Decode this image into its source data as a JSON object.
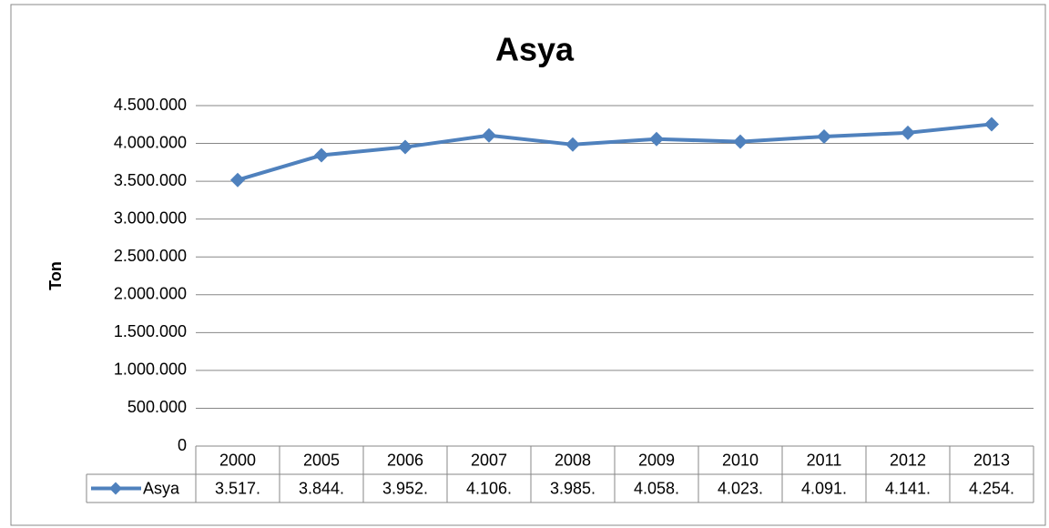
{
  "chart_data": {
    "type": "line",
    "title": "Asya",
    "y_label": "Ton",
    "categories": [
      "2000",
      "2005",
      "2006",
      "2007",
      "2008",
      "2009",
      "2010",
      "2011",
      "2012",
      "2013"
    ],
    "series": [
      {
        "name": "Asya",
        "color": "#4f81bd",
        "values": [
          3517000,
          3844000,
          3952000,
          4106000,
          3985000,
          4058000,
          4023000,
          4091000,
          4141000,
          4254000
        ],
        "value_labels": [
          "3.517.",
          "3.844.",
          "3.952.",
          "4.106.",
          "3.985.",
          "4.058.",
          "4.023.",
          "4.091.",
          "4.141.",
          "4.254."
        ]
      }
    ],
    "ylim": [
      0,
      4500000
    ],
    "yticks": [
      0,
      {
        "value": 500000,
        "label": "500.000"
      },
      {
        "value": 1000000,
        "label": "1.000.000"
      },
      {
        "value": 1500000,
        "label": "1.500.000"
      },
      {
        "value": 2000000,
        "label": "2.000.000"
      },
      {
        "value": 2500000,
        "label": "2.500.000"
      },
      {
        "value": 3000000,
        "label": "3.000.000"
      },
      {
        "value": 3500000,
        "label": "3.500.000"
      },
      {
        "value": 4000000,
        "label": "4.000.000"
      },
      {
        "value": 4500000,
        "label": "4.500.000"
      }
    ],
    "grid": true,
    "legend": "data-table"
  }
}
